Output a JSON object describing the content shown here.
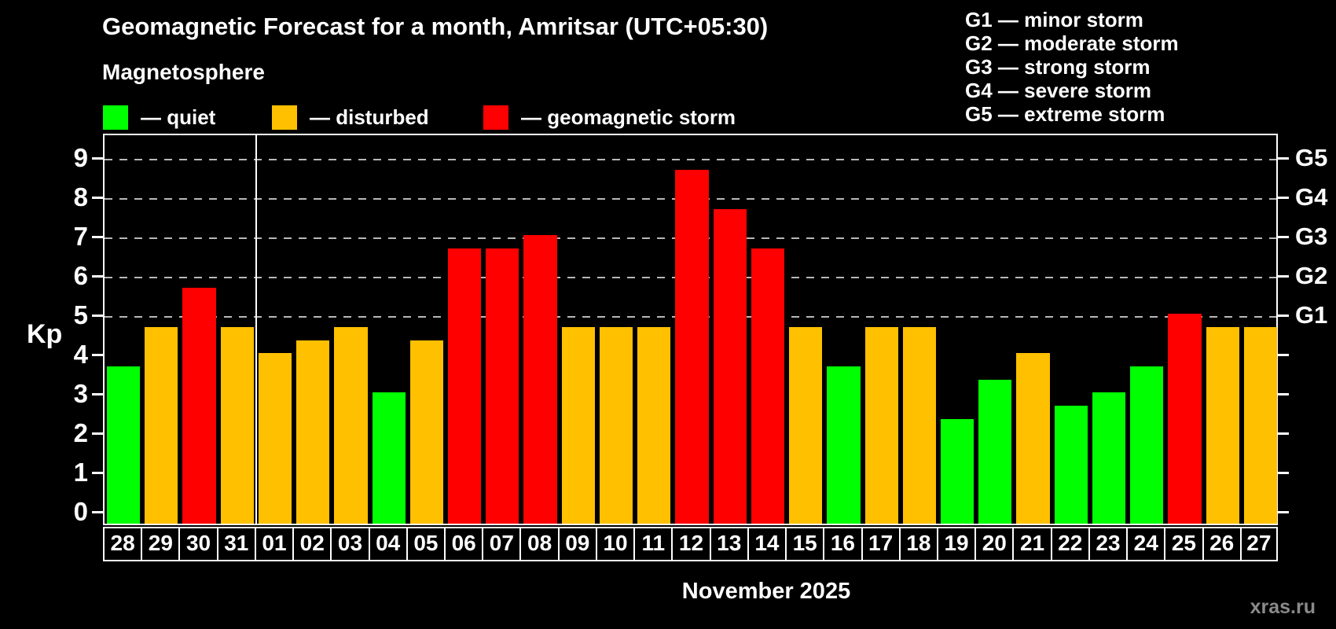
{
  "header": {
    "title": "Geomagnetic Forecast for a month, Amritsar (UTC+05:30)",
    "subtitle": "Magnetosphere"
  },
  "legend": {
    "items": [
      {
        "key": "quiet",
        "label": "— quiet",
        "color": "#00ff00"
      },
      {
        "key": "disturbed",
        "label": "— disturbed",
        "color": "#ffc000"
      },
      {
        "key": "storm",
        "label": "— geomagnetic storm",
        "color": "#ff0000"
      }
    ]
  },
  "g_legend": {
    "lines": [
      "G1 — minor storm",
      "G2 — moderate storm",
      "G3 — strong storm",
      "G4 — severe storm",
      "G5 — extreme storm"
    ]
  },
  "chart_data": {
    "type": "bar",
    "title": "Geomagnetic Forecast for a month, Amritsar (UTC+05:30)",
    "subtitle": "Magnetosphere",
    "ylabel": "Kp",
    "xlabel": "November 2025",
    "ylim": [
      0,
      9
    ],
    "yticks": [
      0,
      1,
      2,
      3,
      4,
      5,
      6,
      7,
      8,
      9
    ],
    "gridlines_at": [
      5,
      6,
      7,
      8,
      9
    ],
    "grid": "dashed horizontal at Kp 5-9",
    "right_axis": [
      {
        "kp": 5,
        "label": "G1"
      },
      {
        "kp": 6,
        "label": "G2"
      },
      {
        "kp": 7,
        "label": "G3"
      },
      {
        "kp": 8,
        "label": "G4"
      },
      {
        "kp": 9,
        "label": "G5"
      }
    ],
    "month_boundary_after_index": 4,
    "categories": [
      "28",
      "29",
      "30",
      "31",
      "01",
      "02",
      "03",
      "04",
      "05",
      "06",
      "07",
      "08",
      "09",
      "10",
      "11",
      "12",
      "13",
      "14",
      "15",
      "16",
      "17",
      "18",
      "19",
      "20",
      "21",
      "22",
      "23",
      "24",
      "25",
      "26",
      "27"
    ],
    "values": [
      3.67,
      4.67,
      5.67,
      4.67,
      4.0,
      4.33,
      4.67,
      3.0,
      4.33,
      6.67,
      6.67,
      7.0,
      4.67,
      4.67,
      4.67,
      8.67,
      7.67,
      6.67,
      4.67,
      3.67,
      4.67,
      4.67,
      2.33,
      3.33,
      4.0,
      2.67,
      3.0,
      3.67,
      5.0,
      4.67,
      4.67
    ],
    "statuses": [
      "quiet",
      "disturbed",
      "storm",
      "disturbed",
      "disturbed",
      "disturbed",
      "disturbed",
      "quiet",
      "disturbed",
      "storm",
      "storm",
      "storm",
      "disturbed",
      "disturbed",
      "disturbed",
      "storm",
      "storm",
      "storm",
      "disturbed",
      "quiet",
      "disturbed",
      "disturbed",
      "quiet",
      "quiet",
      "disturbed",
      "quiet",
      "quiet",
      "quiet",
      "storm",
      "disturbed",
      "disturbed"
    ],
    "colors": {
      "quiet": "#00ff00",
      "disturbed": "#ffc000",
      "storm": "#ff0000"
    },
    "legend_position": "top-left",
    "background": "#000000"
  },
  "footer": {
    "month_label": "November 2025",
    "watermark": "xras.ru"
  }
}
